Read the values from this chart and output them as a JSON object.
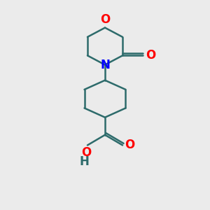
{
  "bg_color": "#ebebeb",
  "bond_color": "#2d6b6b",
  "O_color": "#ff0000",
  "N_color": "#0000ff",
  "H_color": "#2d6b6b",
  "line_width": 1.8,
  "font_size": 12,
  "figsize": [
    3.0,
    3.0
  ],
  "dpi": 100,
  "xlim": [
    0,
    10
  ],
  "ylim": [
    0,
    10
  ]
}
